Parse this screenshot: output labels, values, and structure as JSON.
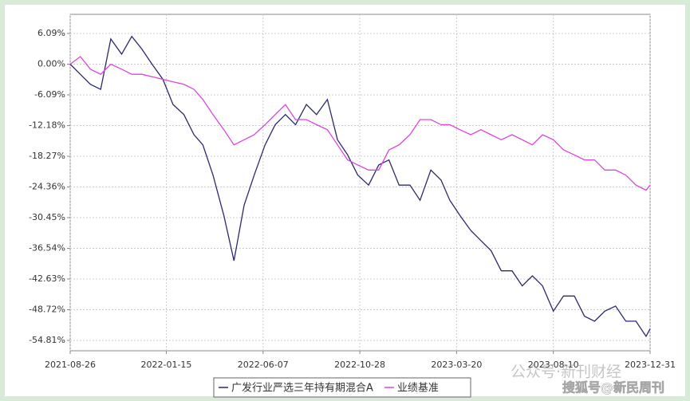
{
  "chart_data": {
    "type": "line",
    "x": [
      "2021-08-26",
      "2021-09-10",
      "2021-09-25",
      "2021-10-10",
      "2021-10-25",
      "2021-11-10",
      "2021-11-25",
      "2021-12-10",
      "2021-12-25",
      "2022-01-10",
      "2022-01-25",
      "2022-02-10",
      "2022-02-25",
      "2022-03-10",
      "2022-03-25",
      "2022-04-10",
      "2022-04-25",
      "2022-05-10",
      "2022-05-25",
      "2022-06-10",
      "2022-06-25",
      "2022-07-10",
      "2022-07-25",
      "2022-08-10",
      "2022-08-25",
      "2022-09-10",
      "2022-09-25",
      "2022-10-10",
      "2022-10-25",
      "2022-11-10",
      "2022-11-25",
      "2022-12-10",
      "2022-12-25",
      "2023-01-10",
      "2023-01-25",
      "2023-02-10",
      "2023-02-25",
      "2023-03-10",
      "2023-03-25",
      "2023-04-10",
      "2023-04-25",
      "2023-05-10",
      "2023-05-25",
      "2023-06-10",
      "2023-06-25",
      "2023-07-10",
      "2023-07-25",
      "2023-08-10",
      "2023-08-25",
      "2023-09-10",
      "2023-09-25",
      "2023-10-10",
      "2023-10-25",
      "2023-11-10",
      "2023-11-25",
      "2023-12-10",
      "2023-12-25",
      "2023-12-31"
    ],
    "series": [
      {
        "name": "广发行业严选三年持有期混合A",
        "color": "#2b2a6b",
        "values": [
          0,
          -2,
          -4,
          -5,
          5,
          2,
          5.5,
          3,
          0,
          -3,
          -8,
          -10,
          -14,
          -16,
          -22,
          -30,
          -39,
          -28,
          -22,
          -16,
          -12,
          -10,
          -12,
          -8,
          -10,
          -7,
          -15,
          -18,
          -22,
          -24,
          -20,
          -19,
          -24,
          -24,
          -27,
          -21,
          -23,
          -27,
          -30,
          -33,
          -35,
          -37,
          -41,
          -41,
          -44,
          -42,
          -44,
          -49,
          -46,
          -46,
          -50,
          -51,
          -49,
          -48,
          -51,
          -51,
          -54,
          -52.5
        ]
      },
      {
        "name": "业绩基准",
        "color": "#dd44dd",
        "values": [
          0,
          1.5,
          -1,
          -2,
          0,
          -1,
          -2,
          -2,
          -2.5,
          -3,
          -3.5,
          -4,
          -5,
          -7,
          -10,
          -13,
          -16,
          -15,
          -14,
          -12,
          -10,
          -8,
          -11,
          -11,
          -12,
          -13,
          -16,
          -19,
          -20,
          -21,
          -21,
          -17,
          -16,
          -14,
          -11,
          -11,
          -12,
          -12,
          -13,
          -14,
          -13,
          -14,
          -15,
          -14,
          -15,
          -16,
          -14,
          -15,
          -17,
          -18,
          -19,
          -19,
          -21,
          -21,
          -22,
          -24,
          -25,
          -24
        ]
      }
    ],
    "xlim": [
      "2021-08-26",
      "2023-12-31"
    ],
    "xticks": [
      "2021-08-26",
      "2022-01-15",
      "2022-06-07",
      "2022-10-28",
      "2023-03-20",
      "2023-08-10",
      "2023-12-31"
    ],
    "ylim": [
      -56.87,
      9.89
    ],
    "yticks": [
      {
        "value": 6.09,
        "label": "6.09%"
      },
      {
        "value": 0,
        "label": "0.00%"
      },
      {
        "value": -6.09,
        "label": "-6.09%"
      },
      {
        "value": -12.18,
        "label": "-12.18%"
      },
      {
        "value": -18.27,
        "label": "-18.27%"
      },
      {
        "value": -24.36,
        "label": "-24.36%"
      },
      {
        "value": -30.45,
        "label": "-30.45%"
      },
      {
        "value": -36.54,
        "label": "-36.54%"
      },
      {
        "value": -42.63,
        "label": "-42.63%"
      },
      {
        "value": -48.72,
        "label": "-48.72%"
      },
      {
        "value": -54.81,
        "label": "-54.81%"
      }
    ],
    "grid": true,
    "legend": "bottom",
    "watermarks": [
      "公众号·新刊财经",
      "搜狐号@新民周刊"
    ]
  }
}
